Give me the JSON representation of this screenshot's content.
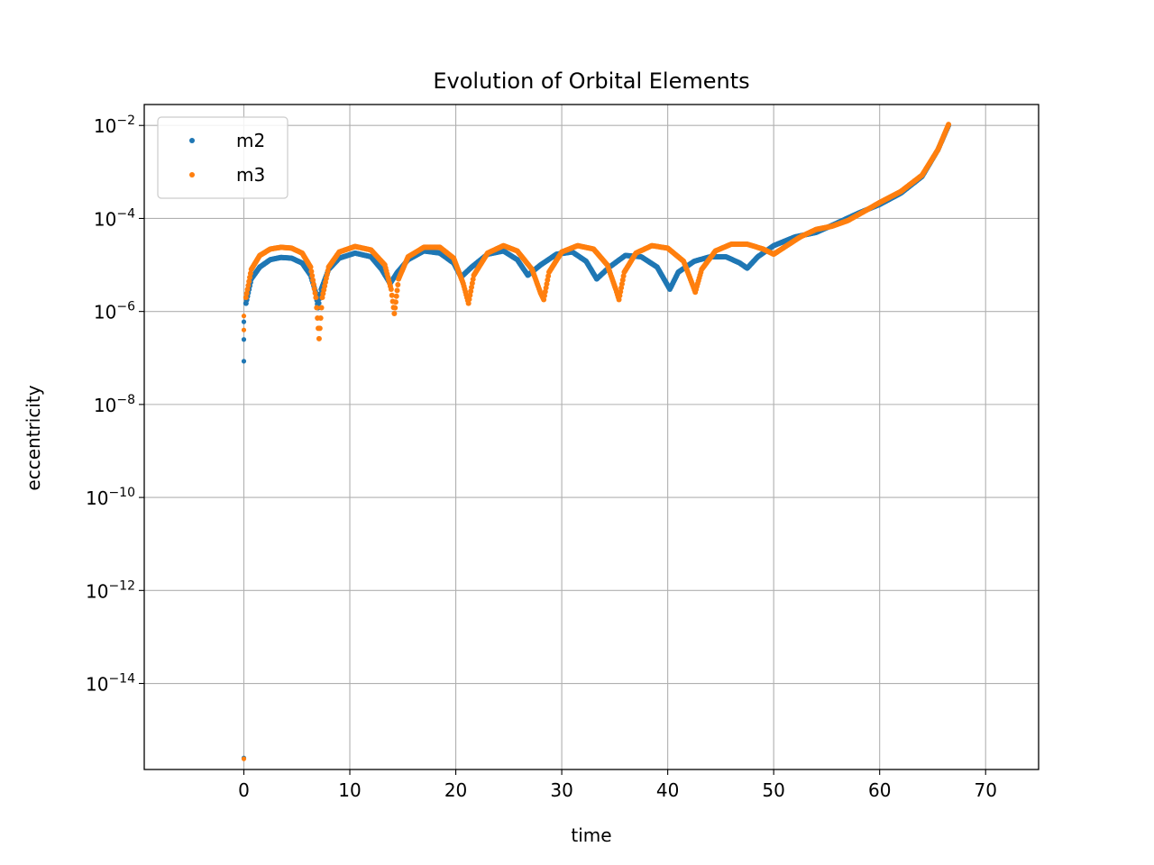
{
  "chart_data": {
    "type": "scatter",
    "title": "Evolution of Orbital Elements",
    "xlabel": "time",
    "ylabel": "eccentricity",
    "xscale": "linear",
    "yscale": "log",
    "xlim": [
      -9.4,
      75
    ],
    "ylim_log10": [
      -15.85,
      -1.55
    ],
    "grid": true,
    "legend_position": "upper left",
    "x_ticks": [
      0,
      10,
      20,
      30,
      40,
      50,
      60,
      70
    ],
    "x_tick_labels": [
      "0",
      "10",
      "20",
      "30",
      "40",
      "50",
      "60",
      "70"
    ],
    "y_ticks_log10": [
      -14,
      -12,
      -10,
      -8,
      -6,
      -4,
      -2
    ],
    "y_tick_labels": [
      {
        "base": "10",
        "exp": "−14"
      },
      {
        "base": "10",
        "exp": "−12"
      },
      {
        "base": "10",
        "exp": "−10"
      },
      {
        "base": "10",
        "exp": "−8"
      },
      {
        "base": "10",
        "exp": "−6"
      },
      {
        "base": "10",
        "exp": "−4"
      },
      {
        "base": "10",
        "exp": "−2"
      }
    ],
    "series": [
      {
        "name": "m2",
        "color": "#1f77b4",
        "outliers": [
          {
            "x": 0,
            "y": 2.5e-16
          },
          {
            "x": 0,
            "y": 8.5e-08
          },
          {
            "x": 0,
            "y": 2.5e-07
          },
          {
            "x": 0,
            "y": 6e-07
          }
        ],
        "curve": [
          {
            "x": 0.2,
            "y": 1.5e-06
          },
          {
            "x": 0.7,
            "y": 5e-06
          },
          {
            "x": 1.5,
            "y": 9e-06
          },
          {
            "x": 2.5,
            "y": 1.3e-05
          },
          {
            "x": 3.5,
            "y": 1.45e-05
          },
          {
            "x": 4.5,
            "y": 1.4e-05
          },
          {
            "x": 5.5,
            "y": 1.1e-05
          },
          {
            "x": 6.3,
            "y": 6e-06
          },
          {
            "x": 6.8,
            "y": 2.5e-06
          },
          {
            "x": 7.0,
            "y": 1.2e-06
          },
          {
            "x": 7.3,
            "y": 3e-06
          },
          {
            "x": 8.0,
            "y": 8e-06
          },
          {
            "x": 9.0,
            "y": 1.4e-05
          },
          {
            "x": 10.5,
            "y": 1.8e-05
          },
          {
            "x": 12.0,
            "y": 1.5e-05
          },
          {
            "x": 13.0,
            "y": 8e-06
          },
          {
            "x": 13.8,
            "y": 4e-06
          },
          {
            "x": 14.5,
            "y": 7e-06
          },
          {
            "x": 15.5,
            "y": 1.3e-05
          },
          {
            "x": 17.0,
            "y": 2e-05
          },
          {
            "x": 18.5,
            "y": 1.8e-05
          },
          {
            "x": 19.8,
            "y": 1.1e-05
          },
          {
            "x": 20.5,
            "y": 5.5e-06
          },
          {
            "x": 21.5,
            "y": 9e-06
          },
          {
            "x": 23.0,
            "y": 1.7e-05
          },
          {
            "x": 24.5,
            "y": 2e-05
          },
          {
            "x": 25.8,
            "y": 1.3e-05
          },
          {
            "x": 26.8,
            "y": 6e-06
          },
          {
            "x": 28.0,
            "y": 1e-05
          },
          {
            "x": 29.5,
            "y": 1.7e-05
          },
          {
            "x": 31.0,
            "y": 1.9e-05
          },
          {
            "x": 32.3,
            "y": 1.2e-05
          },
          {
            "x": 33.3,
            "y": 5e-06
          },
          {
            "x": 34.5,
            "y": 9e-06
          },
          {
            "x": 36.0,
            "y": 1.6e-05
          },
          {
            "x": 37.5,
            "y": 1.5e-05
          },
          {
            "x": 39.0,
            "y": 9e-06
          },
          {
            "x": 40.2,
            "y": 3e-06
          },
          {
            "x": 41.0,
            "y": 7e-06
          },
          {
            "x": 42.5,
            "y": 1.2e-05
          },
          {
            "x": 44.0,
            "y": 1.5e-05
          },
          {
            "x": 45.5,
            "y": 1.5e-05
          },
          {
            "x": 46.8,
            "y": 1.1e-05
          },
          {
            "x": 47.5,
            "y": 8.5e-06
          },
          {
            "x": 48.5,
            "y": 1.5e-05
          },
          {
            "x": 50.0,
            "y": 2.6e-05
          },
          {
            "x": 52.0,
            "y": 4e-05
          },
          {
            "x": 54.0,
            "y": 5e-05
          },
          {
            "x": 56.0,
            "y": 8e-05
          },
          {
            "x": 58.0,
            "y": 0.00013
          },
          {
            "x": 60.0,
            "y": 0.0002
          },
          {
            "x": 62.0,
            "y": 0.00035
          },
          {
            "x": 64.0,
            "y": 0.0008
          },
          {
            "x": 65.5,
            "y": 0.003
          },
          {
            "x": 66.5,
            "y": 0.01
          }
        ]
      },
      {
        "name": "m3",
        "color": "#ff7f0e",
        "outliers": [
          {
            "x": 0,
            "y": 2.4e-16
          },
          {
            "x": 0,
            "y": 4e-07
          },
          {
            "x": 0,
            "y": 8e-07
          }
        ],
        "curve": [
          {
            "x": 0.2,
            "y": 2e-06
          },
          {
            "x": 0.7,
            "y": 8e-06
          },
          {
            "x": 1.5,
            "y": 1.6e-05
          },
          {
            "x": 2.5,
            "y": 2.2e-05
          },
          {
            "x": 3.5,
            "y": 2.4e-05
          },
          {
            "x": 4.5,
            "y": 2.3e-05
          },
          {
            "x": 5.5,
            "y": 1.8e-05
          },
          {
            "x": 6.3,
            "y": 9e-06
          },
          {
            "x": 6.8,
            "y": 2e-06
          },
          {
            "x": 7.1,
            "y": 2.6e-07
          },
          {
            "x": 7.4,
            "y": 2e-06
          },
          {
            "x": 8.0,
            "y": 9e-06
          },
          {
            "x": 9.0,
            "y": 1.9e-05
          },
          {
            "x": 10.5,
            "y": 2.5e-05
          },
          {
            "x": 12.0,
            "y": 2.1e-05
          },
          {
            "x": 13.3,
            "y": 1e-05
          },
          {
            "x": 13.9,
            "y": 3e-06
          },
          {
            "x": 14.2,
            "y": 9e-07
          },
          {
            "x": 14.6,
            "y": 5e-06
          },
          {
            "x": 15.5,
            "y": 1.5e-05
          },
          {
            "x": 17.0,
            "y": 2.4e-05
          },
          {
            "x": 18.5,
            "y": 2.4e-05
          },
          {
            "x": 19.8,
            "y": 1.4e-05
          },
          {
            "x": 20.7,
            "y": 4e-06
          },
          {
            "x": 21.2,
            "y": 1.5e-06
          },
          {
            "x": 21.7,
            "y": 6e-06
          },
          {
            "x": 23.0,
            "y": 1.8e-05
          },
          {
            "x": 24.5,
            "y": 2.6e-05
          },
          {
            "x": 25.8,
            "y": 2e-05
          },
          {
            "x": 27.2,
            "y": 8e-06
          },
          {
            "x": 28.0,
            "y": 2.5e-06
          },
          {
            "x": 28.3,
            "y": 1.8e-06
          },
          {
            "x": 28.8,
            "y": 7e-06
          },
          {
            "x": 30.0,
            "y": 1.9e-05
          },
          {
            "x": 31.5,
            "y": 2.6e-05
          },
          {
            "x": 33.0,
            "y": 2.2e-05
          },
          {
            "x": 34.3,
            "y": 1e-05
          },
          {
            "x": 35.1,
            "y": 3e-06
          },
          {
            "x": 35.4,
            "y": 1.8e-06
          },
          {
            "x": 35.9,
            "y": 7e-06
          },
          {
            "x": 37.0,
            "y": 1.8e-05
          },
          {
            "x": 38.5,
            "y": 2.6e-05
          },
          {
            "x": 40.0,
            "y": 2.3e-05
          },
          {
            "x": 41.5,
            "y": 1.2e-05
          },
          {
            "x": 42.3,
            "y": 4e-06
          },
          {
            "x": 42.6,
            "y": 2.6e-06
          },
          {
            "x": 43.2,
            "y": 8e-06
          },
          {
            "x": 44.5,
            "y": 2e-05
          },
          {
            "x": 46.0,
            "y": 2.8e-05
          },
          {
            "x": 47.5,
            "y": 2.8e-05
          },
          {
            "x": 49.0,
            "y": 2.2e-05
          },
          {
            "x": 50.0,
            "y": 1.7e-05
          },
          {
            "x": 51.0,
            "y": 2.4e-05
          },
          {
            "x": 52.5,
            "y": 4e-05
          },
          {
            "x": 54.0,
            "y": 5.8e-05
          },
          {
            "x": 55.5,
            "y": 6.8e-05
          },
          {
            "x": 57.0,
            "y": 9e-05
          },
          {
            "x": 58.5,
            "y": 0.00014
          },
          {
            "x": 60.0,
            "y": 0.00022
          },
          {
            "x": 62.0,
            "y": 0.00038
          },
          {
            "x": 64.0,
            "y": 0.00085
          },
          {
            "x": 65.5,
            "y": 0.003
          },
          {
            "x": 66.5,
            "y": 0.0105
          }
        ]
      }
    ]
  }
}
